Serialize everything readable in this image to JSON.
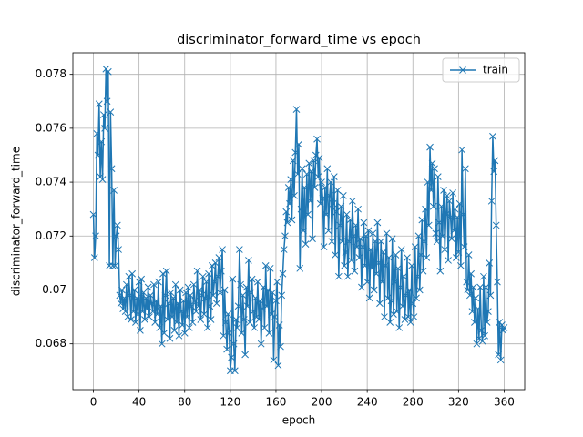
{
  "chart_data": {
    "type": "line",
    "title": "discriminator_forward_time vs epoch",
    "x_label": "epoch",
    "y_label": "discriminator_forward_time",
    "x": [
      0,
      1,
      2,
      3,
      4,
      5,
      6,
      7,
      8,
      9,
      10,
      11,
      12,
      13,
      14,
      15,
      16,
      17,
      18,
      19,
      20,
      21,
      22,
      23,
      24,
      25,
      26,
      27,
      28,
      29,
      30,
      31,
      32,
      33,
      34,
      35,
      36,
      37,
      38,
      39,
      40,
      41,
      42,
      43,
      44,
      45,
      46,
      47,
      48,
      49,
      50,
      51,
      52,
      53,
      54,
      55,
      56,
      57,
      58,
      59,
      60,
      61,
      62,
      63,
      64,
      65,
      66,
      67,
      68,
      69,
      70,
      71,
      72,
      73,
      74,
      75,
      76,
      77,
      78,
      79,
      80,
      81,
      82,
      83,
      84,
      85,
      86,
      87,
      88,
      89,
      90,
      91,
      92,
      93,
      94,
      95,
      96,
      97,
      98,
      99,
      100,
      101,
      102,
      103,
      104,
      105,
      106,
      107,
      108,
      109,
      110,
      111,
      112,
      113,
      114,
      115,
      116,
      117,
      118,
      119,
      120,
      121,
      122,
      123,
      124,
      125,
      126,
      127,
      128,
      129,
      130,
      131,
      132,
      133,
      134,
      135,
      136,
      137,
      138,
      139,
      140,
      141,
      142,
      143,
      144,
      145,
      146,
      147,
      148,
      149,
      150,
      151,
      152,
      153,
      154,
      155,
      156,
      157,
      158,
      159,
      160,
      161,
      162,
      163,
      164,
      165,
      166,
      167,
      168,
      169,
      170,
      171,
      172,
      173,
      174,
      175,
      176,
      177,
      178,
      179,
      180,
      181,
      182,
      183,
      184,
      185,
      186,
      187,
      188,
      189,
      190,
      191,
      192,
      193,
      194,
      195,
      196,
      197,
      198,
      199,
      200,
      201,
      202,
      203,
      204,
      205,
      206,
      207,
      208,
      209,
      210,
      211,
      212,
      213,
      214,
      215,
      216,
      217,
      218,
      219,
      220,
      221,
      222,
      223,
      224,
      225,
      226,
      227,
      228,
      229,
      230,
      231,
      232,
      233,
      234,
      235,
      236,
      237,
      238,
      239,
      240,
      241,
      242,
      243,
      244,
      245,
      246,
      247,
      248,
      249,
      250,
      251,
      252,
      253,
      254,
      255,
      256,
      257,
      258,
      259,
      260,
      261,
      262,
      263,
      264,
      265,
      266,
      267,
      268,
      269,
      270,
      271,
      272,
      273,
      274,
      275,
      276,
      277,
      278,
      279,
      280,
      281,
      282,
      283,
      284,
      285,
      286,
      287,
      288,
      289,
      290,
      291,
      292,
      293,
      294,
      295,
      296,
      297,
      298,
      299,
      300,
      301,
      302,
      303,
      304,
      305,
      306,
      307,
      308,
      309,
      310,
      311,
      312,
      313,
      314,
      315,
      316,
      317,
      318,
      319,
      320,
      321,
      322,
      323,
      324,
      325,
      326,
      327,
      328,
      329,
      330,
      331,
      332,
      333,
      334,
      335,
      336,
      337,
      338,
      339,
      340,
      341,
      342,
      343,
      344,
      345,
      346,
      347,
      348,
      349,
      350,
      351,
      352,
      353,
      354,
      355,
      356,
      357,
      358,
      359,
      360
    ],
    "series": [
      {
        "name": "train",
        "color": "#1f77b4",
        "values": [
          0.0728,
          0.0712,
          0.072,
          0.0758,
          0.075,
          0.0769,
          0.0742,
          0.0755,
          0.0741,
          0.0765,
          0.076,
          0.0782,
          0.077,
          0.0781,
          0.0709,
          0.0766,
          0.0745,
          0.0709,
          0.0737,
          0.0709,
          0.072,
          0.0724,
          0.0715,
          0.0698,
          0.0695,
          0.07,
          0.0693,
          0.0697,
          0.0692,
          0.0702,
          0.069,
          0.0705,
          0.0698,
          0.0689,
          0.0706,
          0.0692,
          0.07,
          0.0688,
          0.0697,
          0.0691,
          0.0703,
          0.0685,
          0.0704,
          0.0692,
          0.0699,
          0.0689,
          0.0697,
          0.0693,
          0.0701,
          0.069,
          0.0698,
          0.0695,
          0.0692,
          0.0702,
          0.0688,
          0.0696,
          0.0691,
          0.0703,
          0.0686,
          0.0694,
          0.068,
          0.0706,
          0.0684,
          0.0698,
          0.0707,
          0.0689,
          0.0695,
          0.0682,
          0.0699,
          0.069,
          0.0697,
          0.0685,
          0.0702,
          0.0688,
          0.0695,
          0.0683,
          0.07,
          0.0692,
          0.0687,
          0.0696,
          0.0684,
          0.0699,
          0.069,
          0.0701,
          0.0686,
          0.0698,
          0.0694,
          0.0688,
          0.0702,
          0.0696,
          0.0692,
          0.0707,
          0.0694,
          0.07,
          0.0689,
          0.0698,
          0.0705,
          0.0691,
          0.0697,
          0.0703,
          0.0686,
          0.0706,
          0.0694,
          0.0689,
          0.0709,
          0.0698,
          0.0703,
          0.071,
          0.0695,
          0.0705,
          0.0712,
          0.0699,
          0.0707,
          0.0715,
          0.0683,
          0.07,
          0.0688,
          0.0678,
          0.0691,
          0.0684,
          0.067,
          0.0675,
          0.0704,
          0.068,
          0.067,
          0.0689,
          0.0686,
          0.0694,
          0.0715,
          0.0702,
          0.0684,
          0.0698,
          0.0689,
          0.0676,
          0.0701,
          0.0694,
          0.0711,
          0.0688,
          0.0699,
          0.0704,
          0.0692,
          0.0686,
          0.0697,
          0.069,
          0.0703,
          0.0689,
          0.0696,
          0.068,
          0.0693,
          0.0701,
          0.0686,
          0.0709,
          0.0694,
          0.07,
          0.0684,
          0.0708,
          0.0691,
          0.0699,
          0.0674,
          0.069,
          0.0696,
          0.0703,
          0.0672,
          0.0687,
          0.0679,
          0.0698,
          0.0706,
          0.0715,
          0.072,
          0.0729,
          0.0725,
          0.0738,
          0.0732,
          0.0741,
          0.0726,
          0.0748,
          0.0735,
          0.0751,
          0.0767,
          0.0743,
          0.0754,
          0.0708,
          0.073,
          0.0745,
          0.0722,
          0.0738,
          0.0717,
          0.0743,
          0.0728,
          0.0747,
          0.0733,
          0.0744,
          0.0719,
          0.0748,
          0.0738,
          0.075,
          0.0756,
          0.0742,
          0.0749,
          0.0732,
          0.074,
          0.0734,
          0.0716,
          0.0738,
          0.0728,
          0.0745,
          0.0722,
          0.0735,
          0.074,
          0.0718,
          0.0732,
          0.0742,
          0.0713,
          0.0729,
          0.0737,
          0.0705,
          0.0724,
          0.0731,
          0.0718,
          0.0735,
          0.0709,
          0.0714,
          0.0728,
          0.0705,
          0.0718,
          0.0726,
          0.0711,
          0.0733,
          0.072,
          0.0707,
          0.0724,
          0.0716,
          0.073,
          0.0712,
          0.0719,
          0.0701,
          0.0716,
          0.0725,
          0.0709,
          0.072,
          0.0703,
          0.0722,
          0.0697,
          0.0715,
          0.0708,
          0.0721,
          0.07,
          0.0718,
          0.0706,
          0.0725,
          0.071,
          0.0695,
          0.0718,
          0.0703,
          0.0714,
          0.069,
          0.0709,
          0.0721,
          0.0697,
          0.0712,
          0.0688,
          0.0696,
          0.0719,
          0.0691,
          0.0703,
          0.0713,
          0.0692,
          0.0708,
          0.0686,
          0.0701,
          0.0715,
          0.0694,
          0.0705,
          0.0689,
          0.0698,
          0.0712,
          0.069,
          0.07,
          0.0688,
          0.0709,
          0.0695,
          0.069,
          0.0716,
          0.0697,
          0.0705,
          0.072,
          0.07,
          0.0713,
          0.0726,
          0.0707,
          0.0718,
          0.073,
          0.0712,
          0.074,
          0.0724,
          0.0753,
          0.0737,
          0.0747,
          0.0731,
          0.0745,
          0.0721,
          0.0718,
          0.0742,
          0.0725,
          0.0707,
          0.0731,
          0.072,
          0.0737,
          0.0715,
          0.0728,
          0.0735,
          0.0711,
          0.0733,
          0.0727,
          0.0719,
          0.0736,
          0.0722,
          0.073,
          0.0712,
          0.0727,
          0.0714,
          0.0732,
          0.0709,
          0.0752,
          0.0728,
          0.0716,
          0.0745,
          0.0703,
          0.07,
          0.0713,
          0.0698,
          0.0706,
          0.0692,
          0.0701,
          0.0688,
          0.0697,
          0.068,
          0.0693,
          0.0682,
          0.0701,
          0.0685,
          0.0681,
          0.0705,
          0.0683,
          0.0701,
          0.0688,
          0.0692,
          0.071,
          0.0698,
          0.0733,
          0.0757,
          0.0744,
          0.0748,
          0.0724,
          0.0703,
          0.0676,
          0.0688,
          0.0674,
          0.0687,
          0.0685,
          0.0686
        ]
      }
    ],
    "xlim": [
      -18,
      378
    ],
    "ylim": [
      0.0663,
      0.0788
    ],
    "xticks": [
      0,
      40,
      80,
      120,
      160,
      200,
      240,
      280,
      320,
      360
    ],
    "yticks": [
      0.068,
      0.07,
      0.072,
      0.074,
      0.076,
      0.078
    ],
    "grid": true,
    "legend": "upper right"
  }
}
